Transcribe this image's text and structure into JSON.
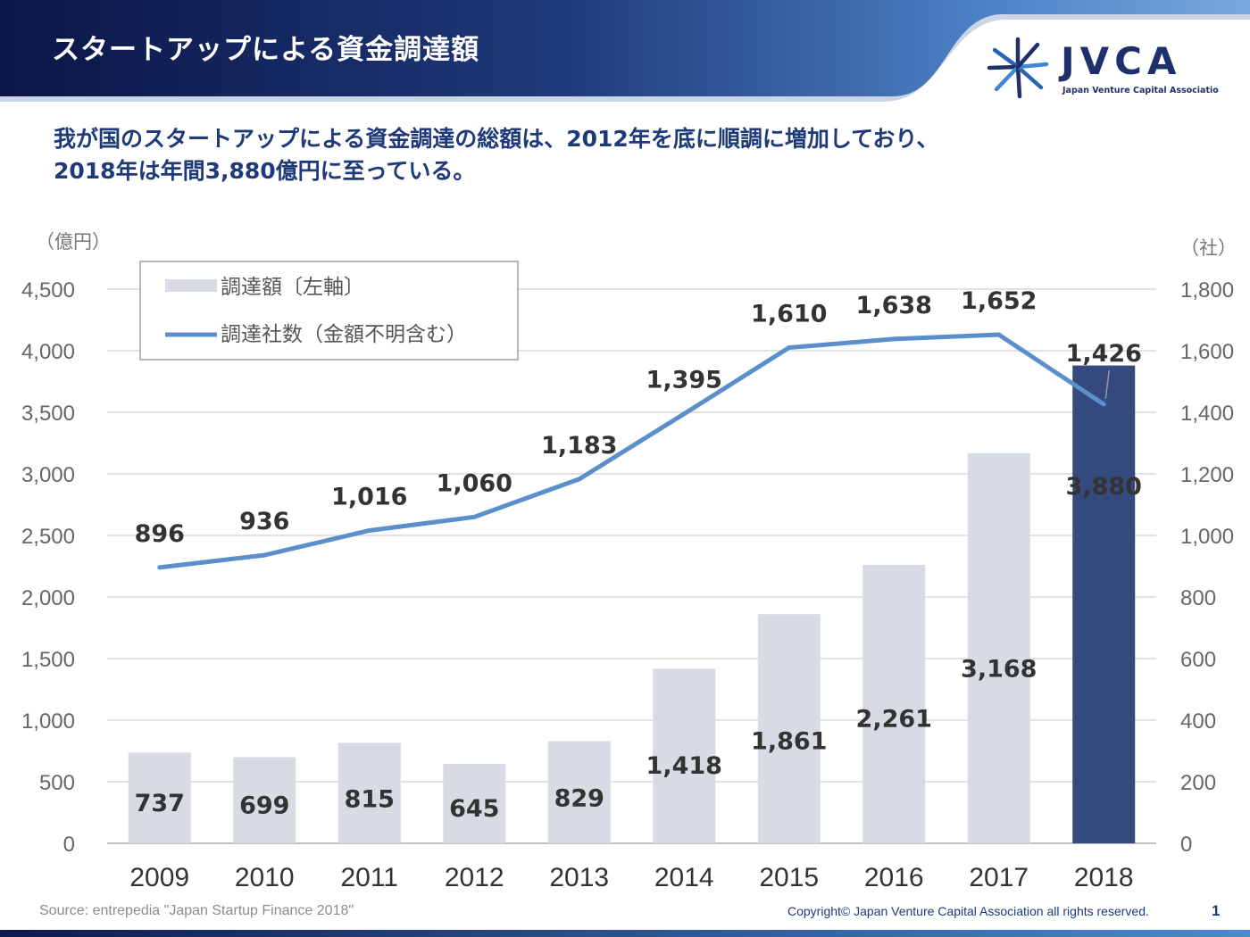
{
  "header": {
    "title": "スタートアップによる資金調達額",
    "logo_text": "JVCA",
    "logo_sub": "Japan Venture Capital Associatio"
  },
  "summary": {
    "line1": "我が国のスタートアップによる資金調達の総額は、2012年を底に順調に増加しており、",
    "line2": "2018年は年間3,880億円に至っている。"
  },
  "chart_data": {
    "type": "bar+line",
    "categories": [
      "2009",
      "2010",
      "2011",
      "2012",
      "2013",
      "2014",
      "2015",
      "2016",
      "2017",
      "2018"
    ],
    "series": [
      {
        "name": "調達額〔左軸〕",
        "type": "bar",
        "axis": "left",
        "values": [
          737,
          699,
          815,
          645,
          829,
          1418,
          1861,
          2261,
          3168,
          3880
        ],
        "labels": [
          "737",
          "699",
          "815",
          "645",
          "829",
          "1,418",
          "1,861",
          "2,261",
          "3,168",
          "3,880"
        ]
      },
      {
        "name": "調達社数（金額不明含む）",
        "type": "line",
        "axis": "right",
        "values": [
          896,
          936,
          1016,
          1060,
          1183,
          1395,
          1610,
          1638,
          1652,
          1426
        ],
        "labels": [
          "896",
          "936",
          "1,016",
          "1,060",
          "1,183",
          "1,395",
          "1,610",
          "1,638",
          "1,652",
          "1,426"
        ]
      }
    ],
    "left_axis": {
      "unit": "（億円）",
      "ylim": [
        0,
        4500
      ],
      "ticks": [
        "0",
        "500",
        "1,000",
        "1,500",
        "2,000",
        "2,500",
        "3,000",
        "3,500",
        "4,000",
        "4,500"
      ]
    },
    "right_axis": {
      "unit": "（社）",
      "ylim": [
        0,
        1800
      ],
      "ticks": [
        "0",
        "200",
        "400",
        "600",
        "800",
        "1,000",
        "1,200",
        "1,400",
        "1,600",
        "1,800"
      ]
    },
    "legend": [
      {
        "label": "調達額〔左軸〕",
        "kind": "bar"
      },
      {
        "label": "調達社数（金額不明含む）",
        "kind": "line"
      }
    ],
    "legend_position": "top-left",
    "highlight_index": 9,
    "colors": {
      "bar": "#d6dbe4",
      "bar_highlight": "#34497e",
      "line": "#5b8fcc",
      "grid": "#d9d9d9",
      "axis": "#bfbfbf"
    }
  },
  "footer": {
    "source": "Source: entrepedia \"Japan Startup Finance 2018\"",
    "copyright": "Copyright© Japan Venture Capital Association all rights reserved.",
    "page": "1"
  }
}
